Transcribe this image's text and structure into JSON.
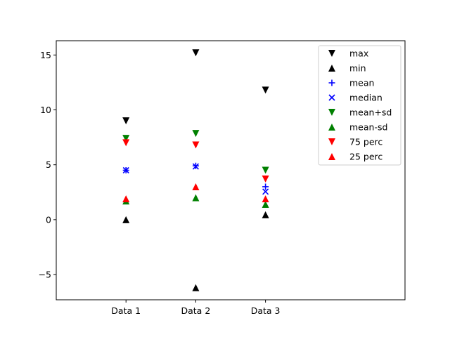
{
  "chart_data": {
    "type": "scatter",
    "categories": [
      "Data 1",
      "Data 2",
      "Data 3"
    ],
    "ylim": [
      -7.3,
      16.3
    ],
    "xlim": [
      0,
      5
    ],
    "yticks": [
      -5,
      0,
      5,
      10,
      15
    ],
    "ytick_labels": [
      "−5",
      "0",
      "5",
      "10",
      "15"
    ],
    "grid": false,
    "legend_position": "top-right",
    "series": [
      {
        "name": "max",
        "marker": "triangle-down",
        "color": "#000000",
        "values": [
          9.0,
          15.2,
          11.8
        ]
      },
      {
        "name": "min",
        "marker": "triangle-up",
        "color": "#000000",
        "values": [
          0.0,
          -6.2,
          0.45
        ]
      },
      {
        "name": "mean",
        "marker": "plus",
        "color": "#0000ff",
        "values": [
          4.5,
          4.9,
          3.0
        ]
      },
      {
        "name": "median",
        "marker": "x",
        "color": "#0000ff",
        "values": [
          4.5,
          4.85,
          2.55
        ]
      },
      {
        "name": "mean+sd",
        "marker": "triangle-down",
        "color": "#008000",
        "values": [
          7.4,
          7.85,
          4.5
        ]
      },
      {
        "name": "mean-sd",
        "marker": "triangle-up",
        "color": "#008000",
        "values": [
          1.7,
          2.0,
          1.4
        ]
      },
      {
        "name": "75 perc",
        "marker": "triangle-down",
        "color": "#ff0000",
        "values": [
          7.0,
          6.8,
          3.7
        ]
      },
      {
        "name": "25 perc",
        "marker": "triangle-up",
        "color": "#ff0000",
        "values": [
          1.9,
          3.0,
          1.9
        ]
      }
    ]
  }
}
